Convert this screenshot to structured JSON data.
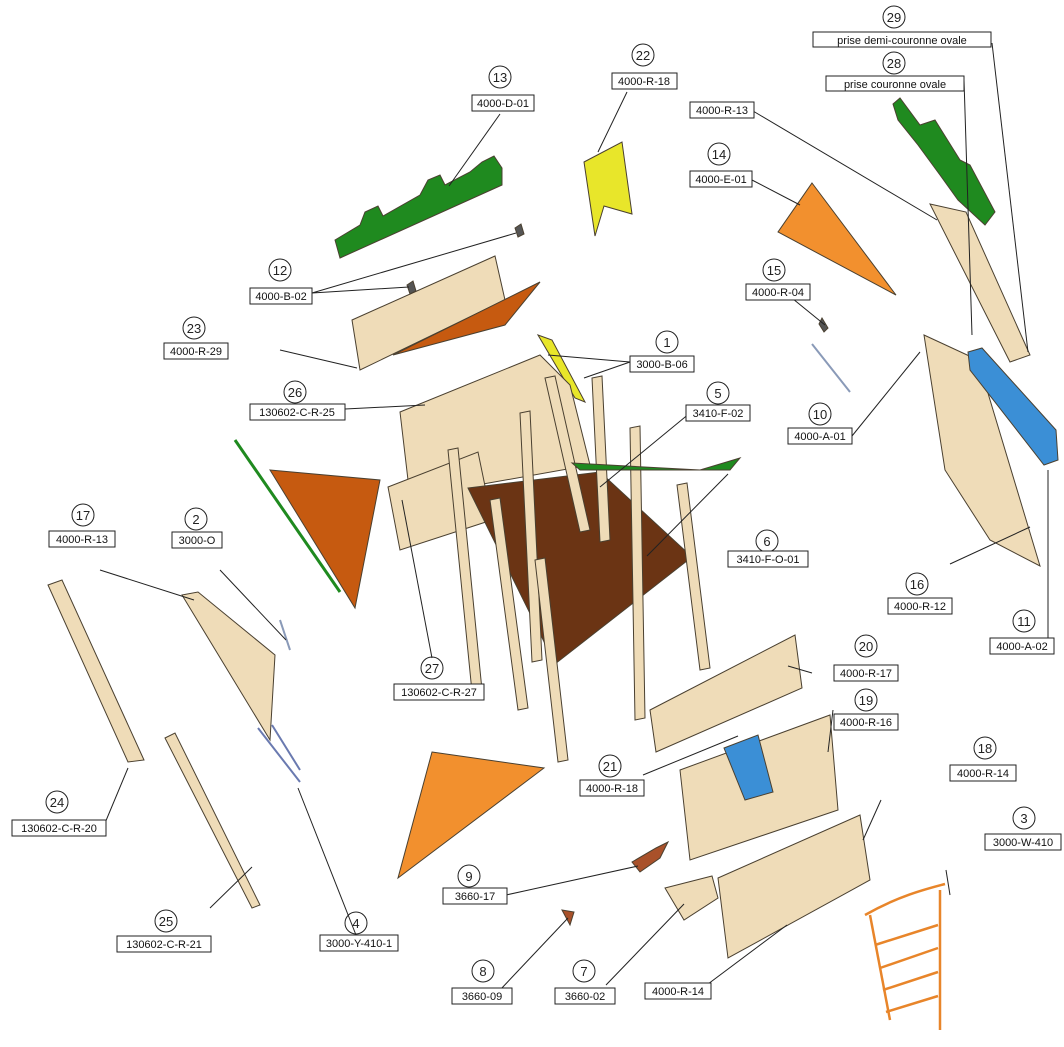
{
  "callouts": [
    {
      "num": "1",
      "code": "3000-B-06"
    },
    {
      "num": "2",
      "code": "3000-O"
    },
    {
      "num": "3",
      "code": "3000-W-410"
    },
    {
      "num": "4",
      "code": "3000-Y-410-1"
    },
    {
      "num": "5",
      "code": "3410-F-02"
    },
    {
      "num": "6",
      "code": "3410-F-O-01"
    },
    {
      "num": "7",
      "code": "3660-02"
    },
    {
      "num": "8",
      "code": "3660-09"
    },
    {
      "num": "9",
      "code": "3660-17"
    },
    {
      "num": "10",
      "code": "4000-A-01"
    },
    {
      "num": "11",
      "code": "4000-A-02"
    },
    {
      "num": "12",
      "code": "4000-B-02"
    },
    {
      "num": "13",
      "code": "4000-D-01"
    },
    {
      "num": "14",
      "code": "4000-E-01"
    },
    {
      "num": "15",
      "code": "4000-R-04"
    },
    {
      "num": "16",
      "code": "4000-R-12"
    },
    {
      "num": "17",
      "code": "4000-R-13"
    },
    {
      "num": "18",
      "code": "4000-R-14"
    },
    {
      "num": "19",
      "code": "4000-R-16"
    },
    {
      "num": "20",
      "code": "4000-R-17"
    },
    {
      "num": "21",
      "code": "4000-R-18"
    },
    {
      "num": "22",
      "code": "4000-R-18"
    },
    {
      "num": "23",
      "code": "4000-R-29"
    },
    {
      "num": "24",
      "code": "130602-C-R-20"
    },
    {
      "num": "25",
      "code": "130602-C-R-21"
    },
    {
      "num": "26",
      "code": "130602-C-R-25"
    },
    {
      "num": "27",
      "code": "130602-C-R-27"
    },
    {
      "num": "28",
      "code": "prise couronne ovale"
    },
    {
      "num": "29",
      "code": "prise demi-couronne ovale"
    }
  ],
  "extra_labels": [
    {
      "code": "4000-R-13"
    },
    {
      "code": "4000-R-14"
    }
  ],
  "colors": {
    "wood": "#efdcb8",
    "wood_edge": "#8a7a5a",
    "green": "#1f8a1f",
    "orange_dark": "#c65a10",
    "orange_light": "#f2902e",
    "yellow": "#e8e62a",
    "blue": "#3b8fd6",
    "deck": "#6b3414",
    "ladder": "#e8852a",
    "line": "#222222"
  }
}
